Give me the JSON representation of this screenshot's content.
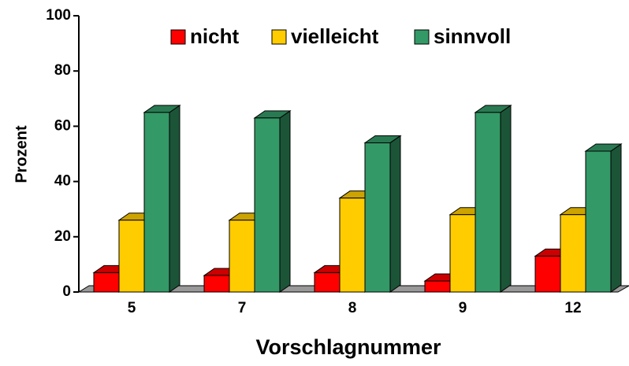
{
  "chart_data": {
    "type": "bar3d",
    "x_label": "Vorschlagnummer",
    "y_label": "Prozent",
    "categories": [
      "5",
      "7",
      "8",
      "9",
      "12"
    ],
    "series": [
      {
        "name": "nicht",
        "color": "#ff0000",
        "values": [
          7,
          6,
          7,
          4,
          13
        ]
      },
      {
        "name": "vielleicht",
        "color": "#ffcc00",
        "values": [
          26,
          26,
          34,
          28,
          28
        ]
      },
      {
        "name": "sinnvoll",
        "color": "#339966",
        "values": [
          65,
          63,
          54,
          65,
          51
        ]
      }
    ],
    "ylim": [
      0,
      100
    ],
    "yticks": [
      0,
      20,
      40,
      60,
      80,
      100
    ],
    "legend": "top"
  }
}
